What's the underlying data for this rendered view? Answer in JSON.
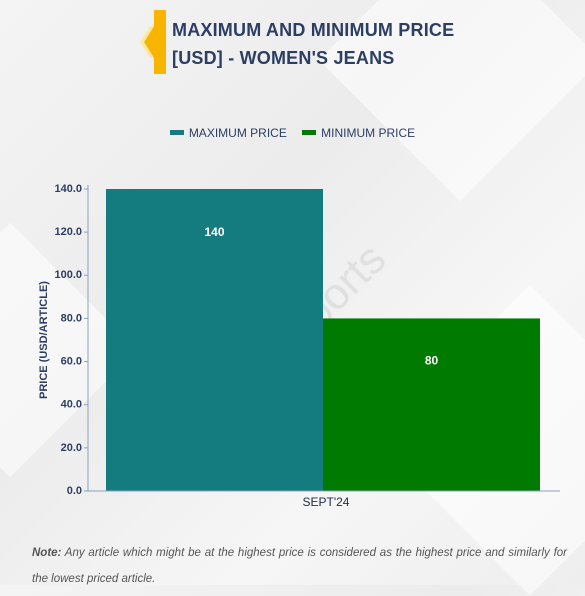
{
  "header": {
    "title_line1": "MAXIMUM AND MINIMUM PRICE",
    "title_line2": "[USD] - WOMEN'S JEANS"
  },
  "colors": {
    "accent": "#f7b500",
    "max": "#147b7e",
    "min": "#007a00",
    "text": "#2c3e63"
  },
  "watermark": "D&J Reports",
  "chart_data": {
    "type": "bar",
    "categories": [
      "SEPT'24"
    ],
    "series": [
      {
        "name": "MAXIMUM PRICE",
        "values": [
          140
        ],
        "color": "#147b7e"
      },
      {
        "name": "MINIMUM PRICE",
        "values": [
          80
        ],
        "color": "#007a00"
      }
    ],
    "ylabel": "PRICE (USD/ARTICLE)",
    "ylim": [
      0,
      140
    ],
    "yticks": [
      "0.0",
      "20.0",
      "40.0",
      "60.0",
      "80.0",
      "100.0",
      "120.0",
      "140.0"
    ],
    "data_labels": [
      "140",
      "80"
    ],
    "legend": "top-center",
    "grid": false
  },
  "note": {
    "label": "Note:",
    "text": "Any article which might be at the highest price is considered as the highest price and similarly for the lowest priced article."
  }
}
